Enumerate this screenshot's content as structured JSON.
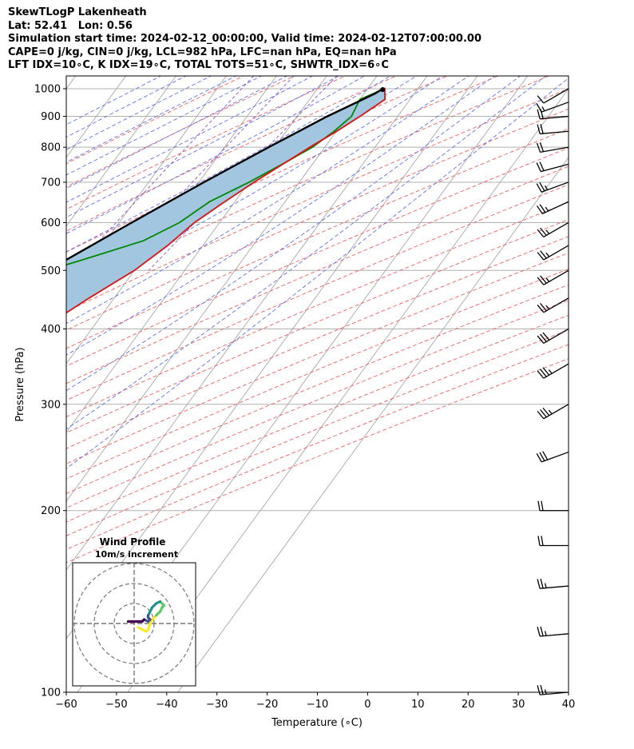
{
  "header": {
    "line1": "SkewTLogP Lakenheath",
    "line2": "Lat: 52.41   Lon: 0.56",
    "line3": "Simulation start time: 2024-02-12_00:00:00, Valid time: 2024-02-12T07:00:00.00",
    "line4": "CAPE=0 j/kg, CIN=0 j/kg, LCL=982 hPa, LFC=nan hPa, EQ=nan hPa",
    "line5": "LFT IDX=10∘C, K IDX=19∘C, TOTAL TOTS=51∘C, SHWTR_IDX=6∘C"
  },
  "chart_data": [
    {
      "type": "line",
      "subtype": "skew-T log-P diagram",
      "xlabel": "Temperature (∘C)",
      "ylabel": "Pressure (hPa)",
      "xlim": [
        -60,
        40
      ],
      "ylim": [
        1050,
        100
      ],
      "y_scale": "log",
      "x_ticks": [
        "−60",
        "−50",
        "−40",
        "−30",
        "−20",
        "−10",
        "0",
        "10",
        "20",
        "30",
        "40"
      ],
      "y_ticks": [
        "100",
        "200",
        "300",
        "400",
        "500",
        "600",
        "700",
        "800",
        "900",
        "1000"
      ],
      "series": [
        {
          "role": "temperature",
          "color": "#dd1111",
          "pressure": [
            990,
            1000,
            960,
            900,
            850,
            800,
            700,
            650,
            600,
            550,
            500,
            450,
            400,
            350,
            300,
            280,
            260,
            240,
            220,
            200,
            180,
            160,
            140,
            120,
            100
          ],
          "temperature": [
            3.0,
            3.4,
            5.0,
            2.5,
            0.0,
            -3.0,
            -9.0,
            -12.0,
            -15.0,
            -17.0,
            -20.0,
            -25.0,
            -30.0,
            -36.0,
            -42.5,
            -44.5,
            -46.0,
            -48.0,
            -51.0,
            -53.0,
            -58.0,
            -62.0,
            -67.0,
            -70.0,
            -75.0
          ]
        },
        {
          "role": "dewpoint",
          "color": "#008800",
          "pressure": [
            990,
            960,
            900,
            850,
            800,
            750,
            700,
            650,
            600,
            560,
            520,
            480,
            450,
            420,
            400,
            350,
            300,
            270,
            240,
            220,
            200,
            180,
            160,
            130,
            100
          ],
          "temperature": [
            2.5,
            0.0,
            0.8,
            -0.5,
            -2.5,
            -6.0,
            -10.0,
            -15.0,
            -18.0,
            -22.5,
            -32.0,
            -43.0,
            -46.5,
            -47.5,
            -47.0,
            -52.5,
            -57.5,
            -61.0,
            -69.5,
            -74.5,
            -79.0,
            -82.0,
            -84.0,
            -89.0,
            -95.0
          ]
        },
        {
          "role": "parcel profile",
          "color": "#000000",
          "pressure": [
            1000,
            982,
            900,
            800,
            700,
            600,
            500,
            400,
            300,
            250,
            200,
            150,
            100
          ],
          "temperature": [
            3.0,
            2.2,
            -4.0,
            -11.2,
            -19.0,
            -27.5,
            -37.3,
            -48.5,
            -62.0,
            -70.5,
            -80.5,
            -93.0,
            -108.0
          ]
        }
      ],
      "shaded": "area between temperature and parcel profile (light blue)",
      "reference_lines": {
        "isotherms": "grey solid, skewed",
        "dry_adiabats": "red dashed",
        "moist_adiabats": "blue dashed",
        "mixing_ratio": "purple dashed"
      },
      "wind_barbs": {
        "side": "right",
        "pressure": [
          1000,
          950,
          900,
          850,
          800,
          750,
          700,
          650,
          600,
          550,
          500,
          450,
          400,
          350,
          300,
          250,
          200,
          175,
          150,
          125,
          100
        ],
        "direction_deg": [
          300,
          290,
          275,
          275,
          280,
          285,
          290,
          295,
          300,
          300,
          300,
          300,
          300,
          300,
          300,
          290,
          270,
          270,
          275,
          275,
          275
        ],
        "speed_kt": [
          10,
          15,
          20,
          20,
          20,
          20,
          25,
          25,
          25,
          25,
          25,
          25,
          30,
          35,
          35,
          30,
          20,
          20,
          25,
          25,
          25
        ]
      }
    },
    {
      "type": "line",
      "subtype": "hodograph",
      "title": "Wind Profile",
      "subtitle": "10m/s increment",
      "ring_step_ms": 10,
      "rings": 3,
      "grid": true,
      "u": [
        2,
        4,
        6,
        7,
        8,
        9,
        11,
        13,
        14,
        15,
        14,
        13,
        11,
        10,
        9,
        8,
        7,
        7,
        8,
        7,
        5,
        4,
        2,
        1,
        -1,
        -3
      ],
      "v": [
        -2,
        -3,
        -4,
        -3,
        0,
        2,
        4,
        6,
        8,
        9,
        10,
        11,
        10,
        9,
        8,
        6,
        4,
        3,
        2,
        1,
        2,
        1,
        1,
        1,
        1,
        1
      ]
    }
  ]
}
